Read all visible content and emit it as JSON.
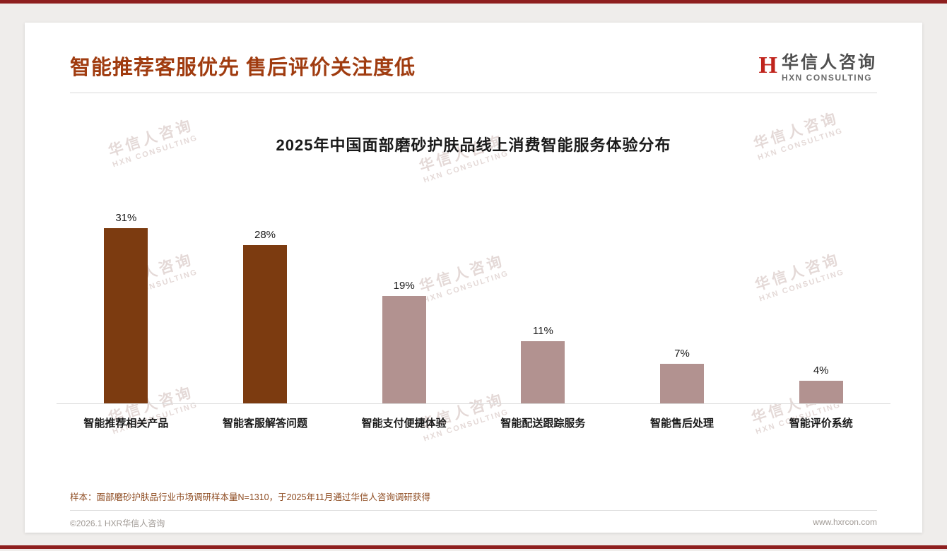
{
  "page": {
    "accent_line_color": "#8e1f1f"
  },
  "header": {
    "title": "智能推荐客服优先 售后评价关注度低"
  },
  "logo": {
    "icon": "H",
    "cn": "华信人咨询",
    "en": "HXN CONSULTING"
  },
  "watermark": {
    "cn": "华信人咨询",
    "en": "HXN CONSULTING"
  },
  "chart_data": {
    "type": "bar",
    "title": "2025年中国面部磨砂护肤品线上消费智能服务体验分布",
    "categories": [
      "智能推荐相关产品",
      "智能客服解答问题",
      "智能支付便捷体验",
      "智能配送跟踪服务",
      "智能售后处理",
      "智能评价系统"
    ],
    "values": [
      31,
      28,
      19,
      11,
      7,
      4
    ],
    "value_labels": [
      "31%",
      "28%",
      "19%",
      "11%",
      "7%",
      "4%"
    ],
    "bar_colors": [
      "#7c3b10",
      "#7c3b10",
      "#b29290",
      "#b29290",
      "#b29290",
      "#b29290"
    ],
    "xlabel": "",
    "ylabel": "",
    "ylim": [
      0,
      35
    ],
    "grid": false,
    "legend": false
  },
  "note": "样本：面部磨砂护肤品行业市场调研样本量N=1310，于2025年11月通过华信人咨询调研获得",
  "footer": {
    "left": "©2026.1 HXR华信人咨询",
    "right": "www.hxrcon.com"
  }
}
